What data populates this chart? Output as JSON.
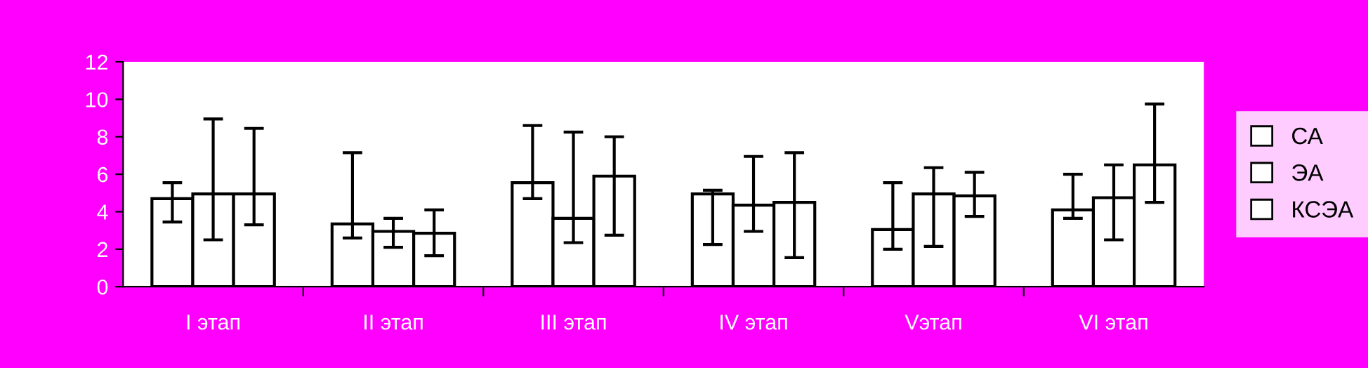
{
  "chart_data": {
    "type": "bar",
    "categories": [
      "I этап",
      "II этап",
      "III этап",
      "IV этап",
      "Vэтап",
      "VI этап"
    ],
    "series": [
      {
        "name": "СА",
        "color": "#ffffff",
        "values": [
          4.7,
          3.35,
          5.55,
          4.95,
          3.05,
          4.1
        ],
        "errors": [
          [
            3.45,
            5.55
          ],
          [
            2.6,
            7.15
          ],
          [
            4.7,
            8.6
          ],
          [
            2.25,
            5.15
          ],
          [
            2.0,
            5.55
          ],
          [
            3.65,
            6.0
          ]
        ]
      },
      {
        "name": "ЭА",
        "color": "#ffffff",
        "values": [
          4.95,
          2.95,
          3.65,
          4.35,
          4.95,
          4.75
        ],
        "errors": [
          [
            2.5,
            8.95
          ],
          [
            2.1,
            3.65
          ],
          [
            2.35,
            8.25
          ],
          [
            2.95,
            6.95
          ],
          [
            2.15,
            6.35
          ],
          [
            2.5,
            6.5
          ]
        ]
      },
      {
        "name": "КСЭА",
        "color": "#ffffff",
        "values": [
          4.95,
          2.85,
          5.9,
          4.5,
          4.85,
          6.5
        ],
        "errors": [
          [
            3.3,
            8.45
          ],
          [
            1.65,
            4.1
          ],
          [
            2.75,
            8.0
          ],
          [
            1.55,
            7.15
          ],
          [
            3.75,
            6.1
          ],
          [
            4.5,
            9.75
          ]
        ]
      }
    ],
    "ylim": [
      0,
      12
    ],
    "yticks": [
      0,
      2,
      4,
      6,
      8,
      10,
      12
    ],
    "grid": false,
    "legend": "right"
  }
}
